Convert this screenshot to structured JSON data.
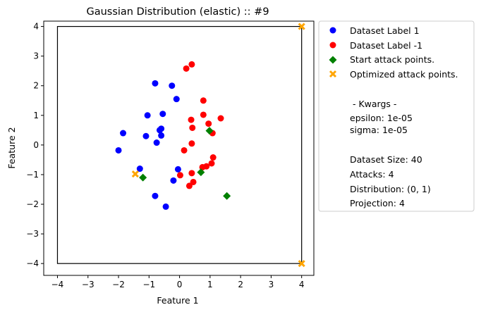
{
  "chart_data": {
    "type": "scatter",
    "title": "Gaussian Distribution (elastic) :: #9",
    "xlabel": "Feature 1",
    "ylabel": "Feature 2",
    "xlim": [
      -4.45,
      4.4
    ],
    "ylim": [
      -4.4,
      4.18
    ],
    "xticks": [
      -4,
      -3,
      -2,
      -1,
      0,
      1,
      2,
      3,
      4
    ],
    "yticks": [
      -4,
      -3,
      -2,
      -1,
      0,
      1,
      2,
      3,
      4
    ],
    "xtick_labels": [
      "−4",
      "−3",
      "−2",
      "−1",
      "0",
      "1",
      "2",
      "3",
      "4"
    ],
    "ytick_labels": [
      "−4",
      "−3",
      "−2",
      "−1",
      "0",
      "1",
      "2",
      "3",
      "4"
    ],
    "grid": false,
    "legend_position": "outside-right",
    "projection_box": {
      "xmin": -4,
      "xmax": 4,
      "ymin": -4,
      "ymax": 4
    },
    "series": [
      {
        "name": "Dataset Label 1",
        "marker": "circle",
        "color": "#0000ff",
        "points": [
          [
            -0.8,
            2.08
          ],
          [
            -0.25,
            2.0
          ],
          [
            -0.1,
            1.55
          ],
          [
            -1.05,
            1.0
          ],
          [
            -0.55,
            1.05
          ],
          [
            -1.85,
            0.4
          ],
          [
            -0.6,
            0.55
          ],
          [
            -0.65,
            0.5
          ],
          [
            -1.1,
            0.3
          ],
          [
            -0.6,
            0.32
          ],
          [
            -0.75,
            0.08
          ],
          [
            -2.0,
            -0.18
          ],
          [
            -1.3,
            -0.8
          ],
          [
            -0.05,
            -0.82
          ],
          [
            -0.2,
            -1.2
          ],
          [
            -0.8,
            -1.72
          ],
          [
            -0.45,
            -2.08
          ]
        ]
      },
      {
        "name": "Dataset Label -1",
        "marker": "circle",
        "color": "#ff0000",
        "points": [
          [
            0.4,
            2.72
          ],
          [
            0.22,
            2.58
          ],
          [
            0.78,
            1.5
          ],
          [
            0.78,
            1.02
          ],
          [
            0.38,
            0.85
          ],
          [
            1.35,
            0.9
          ],
          [
            0.95,
            0.72
          ],
          [
            0.42,
            0.58
          ],
          [
            1.08,
            0.4
          ],
          [
            0.4,
            0.05
          ],
          [
            0.15,
            -0.18
          ],
          [
            1.1,
            -0.42
          ],
          [
            1.05,
            -0.62
          ],
          [
            0.88,
            -0.72
          ],
          [
            0.75,
            -0.75
          ],
          [
            0.4,
            -0.95
          ],
          [
            0.02,
            -1.02
          ],
          [
            0.45,
            -1.25
          ],
          [
            0.32,
            -1.38
          ]
        ]
      },
      {
        "name": "Start attack points.",
        "marker": "diamond",
        "color": "#008000",
        "points": [
          [
            0.98,
            0.48
          ],
          [
            -1.2,
            -1.1
          ],
          [
            0.7,
            -0.92
          ],
          [
            1.55,
            -1.72
          ]
        ]
      },
      {
        "name": "Optimized attack points.",
        "marker": "x",
        "color": "#ffa500",
        "points": [
          [
            4.0,
            4.0
          ],
          [
            -1.45,
            -0.98
          ],
          [
            4.0,
            -4.0
          ]
        ]
      }
    ],
    "annotations": [
      " - Kwargs -",
      "epsilon: 1e-05",
      "sigma: 1e-05",
      "Dataset Size: 40",
      "Attacks: 4",
      "Distribution: (0, 1)",
      "Projection: 4"
    ]
  }
}
